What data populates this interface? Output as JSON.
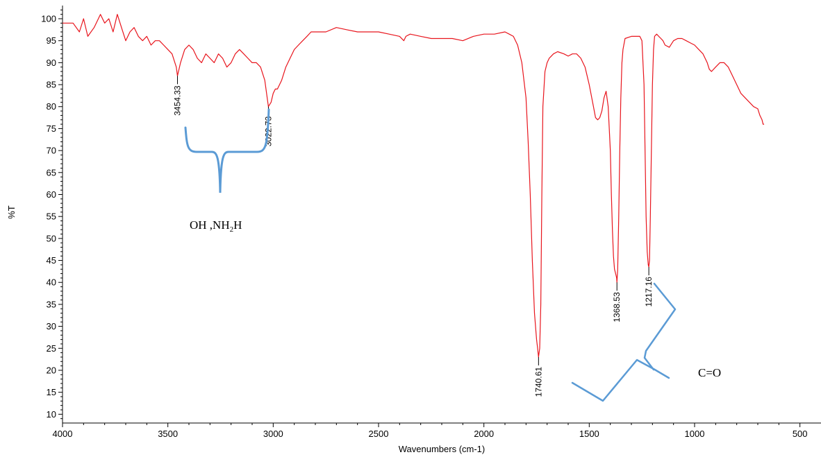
{
  "chart_data": {
    "type": "line",
    "title": "",
    "xlabel": "Wavenumbers (cm-1)",
    "ylabel": "%T",
    "xlim": [
      4000,
      400
    ],
    "ylim": [
      8,
      103
    ],
    "x_reversed": true,
    "xticks": [
      4000,
      3500,
      3000,
      2500,
      2000,
      1500,
      1000,
      500
    ],
    "yticks": [
      10,
      15,
      20,
      25,
      30,
      35,
      40,
      45,
      50,
      55,
      60,
      65,
      70,
      75,
      80,
      85,
      90,
      95,
      100
    ],
    "line_color": "#e8141c",
    "bracket_color": "#5b9bd5",
    "series": [
      {
        "x": [
          4000,
          3950,
          3920,
          3900,
          3880,
          3850,
          3820,
          3800,
          3780,
          3760,
          3740,
          3720,
          3700,
          3680,
          3660,
          3640,
          3620,
          3600,
          3580,
          3560,
          3540,
          3520,
          3500,
          3480,
          3460,
          3454.33,
          3440,
          3420,
          3400,
          3380,
          3360,
          3340,
          3320,
          3300,
          3280,
          3260,
          3240,
          3220,
          3200,
          3180,
          3160,
          3140,
          3120,
          3100,
          3080,
          3060,
          3040,
          3022.73,
          3010,
          3000,
          2990,
          2980,
          2960,
          2940,
          2920,
          2900,
          2880,
          2860,
          2840,
          2820,
          2800,
          2780,
          2750,
          2700,
          2650,
          2600,
          2550,
          2500,
          2450,
          2400,
          2380,
          2370,
          2350,
          2300,
          2250,
          2200,
          2150,
          2100,
          2050,
          2000,
          1950,
          1900,
          1880,
          1860,
          1840,
          1820,
          1800,
          1790,
          1780,
          1770,
          1760,
          1750,
          1745,
          1740.61,
          1735,
          1730,
          1725,
          1720,
          1710,
          1700,
          1690,
          1680,
          1670,
          1650,
          1620,
          1600,
          1580,
          1560,
          1540,
          1520,
          1500,
          1480,
          1470,
          1460,
          1450,
          1440,
          1430,
          1420,
          1410,
          1400,
          1395,
          1390,
          1385,
          1380,
          1375,
          1370,
          1368.53,
          1365,
          1360,
          1355,
          1350,
          1345,
          1340,
          1330,
          1300,
          1280,
          1260,
          1250,
          1240,
          1235,
          1230,
          1225,
          1220,
          1217.16,
          1214,
          1210,
          1205,
          1200,
          1195,
          1190,
          1180,
          1170,
          1160,
          1150,
          1140,
          1120,
          1100,
          1080,
          1060,
          1040,
          1020,
          1000,
          980,
          960,
          940,
          930,
          920,
          900,
          880,
          860,
          840,
          820,
          800,
          780,
          760,
          740,
          720,
          700,
          690,
          680,
          675,
          670
        ],
        "y": [
          99,
          99,
          97,
          100,
          96,
          98,
          101,
          99,
          100,
          97,
          101,
          98,
          95,
          97,
          98,
          96,
          95,
          96,
          94,
          95,
          95,
          94,
          93,
          92,
          89,
          87,
          90,
          93,
          94,
          93,
          91,
          90,
          92,
          91,
          90,
          92,
          91,
          89,
          90,
          92,
          93,
          92,
          91,
          90,
          90,
          89,
          86,
          80,
          81,
          83,
          84,
          84,
          86,
          89,
          91,
          93,
          94,
          95,
          96,
          97,
          97,
          97,
          97,
          98,
          97.5,
          97,
          97,
          97,
          96.5,
          96,
          95,
          96,
          96.5,
          96,
          95.5,
          95.5,
          95.5,
          95,
          96,
          96.5,
          96.5,
          97,
          96.5,
          96,
          94,
          90,
          82,
          72,
          60,
          45,
          33,
          27,
          25,
          23,
          25,
          35,
          60,
          80,
          88,
          90,
          91,
          91.5,
          92,
          92.5,
          92,
          91.5,
          92,
          92,
          91,
          89,
          85,
          80,
          77.5,
          77,
          77.5,
          79,
          82,
          83.5,
          80,
          70,
          60,
          52,
          46,
          43,
          42,
          41,
          40,
          43,
          55,
          70,
          82,
          90,
          93,
          95.5,
          96,
          96,
          96,
          95,
          85,
          70,
          55,
          47,
          44,
          43.5,
          45,
          55,
          70,
          85,
          93,
          96,
          96.5,
          96,
          95.5,
          95,
          94,
          93.5,
          95,
          95.5,
          95.5,
          95,
          94.5,
          94,
          93,
          92,
          90,
          88.5,
          88,
          89,
          90,
          90,
          89,
          87,
          85,
          83,
          82,
          81,
          80,
          79.5,
          78,
          77,
          76,
          76
        ]
      }
    ],
    "peak_labels": [
      {
        "x": 3454.33,
        "y": 87,
        "text": "3454.33"
      },
      {
        "x": 3022.73,
        "y": 80,
        "text": "3022.73"
      },
      {
        "x": 1740.61,
        "y": 23,
        "text": "1740.61"
      },
      {
        "x": 1368.53,
        "y": 40,
        "text": "1368.53"
      },
      {
        "x": 1217.16,
        "y": 43.5,
        "text": "1217.16"
      }
    ],
    "annotations": [
      {
        "text": "OH ,NH",
        "sub": "2",
        "after": "H"
      },
      {
        "text": "C=O"
      }
    ]
  }
}
